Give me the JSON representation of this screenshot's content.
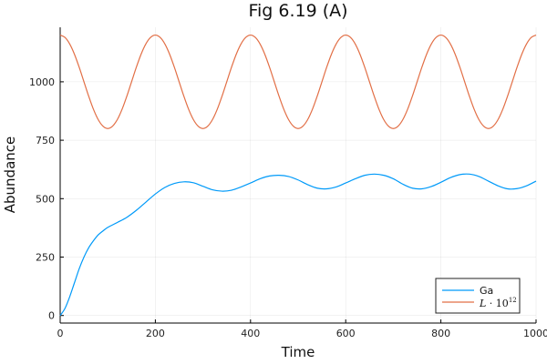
{
  "chart_data": {
    "type": "line",
    "title": "Fig 6.19 (A)",
    "xlabel": "Time",
    "ylabel": "Abundance",
    "xlim": [
      0,
      1000
    ],
    "ylim": [
      -40,
      1240
    ],
    "xticks": [
      0,
      200,
      400,
      600,
      800,
      1000
    ],
    "yticks": [
      0,
      250,
      500,
      750,
      1000
    ],
    "grid": true,
    "legend_position": "bottom-right",
    "series": [
      {
        "name": "Ga",
        "color": "#009af9",
        "x": [
          0,
          10,
          20,
          30,
          40,
          50,
          60,
          70,
          80,
          90,
          100,
          120,
          140,
          160,
          180,
          200,
          220,
          240,
          260,
          280,
          300,
          320,
          340,
          360,
          380,
          400,
          420,
          440,
          460,
          480,
          500,
          520,
          540,
          560,
          580,
          600,
          620,
          640,
          660,
          680,
          700,
          720,
          740,
          760,
          780,
          800,
          820,
          840,
          860,
          880,
          900,
          920,
          940,
          960,
          980,
          1000
        ],
        "y": [
          0,
          30,
          80,
          140,
          200,
          250,
          290,
          320,
          345,
          362,
          377,
          398,
          420,
          450,
          485,
          520,
          548,
          565,
          572,
          568,
          553,
          538,
          532,
          536,
          550,
          567,
          585,
          597,
          600,
          595,
          580,
          560,
          545,
          542,
          550,
          567,
          585,
          600,
          605,
          600,
          585,
          562,
          545,
          542,
          552,
          570,
          590,
          603,
          605,
          595,
          575,
          555,
          542,
          543,
          555,
          575
        ]
      },
      {
        "name": "L · 10^12",
        "name_base": "L",
        "name_mid": " · 10",
        "name_exp": "12",
        "color": "#e26f46",
        "x_step": 10,
        "y": [
          1200,
          1190,
          1162,
          1118,
          1062,
          1000,
          938,
          882,
          838,
          810,
          800,
          810,
          838,
          882,
          938,
          1000,
          1062,
          1118,
          1162,
          1190,
          1200,
          1190,
          1162,
          1118,
          1062,
          1000,
          938,
          882,
          838,
          810,
          800,
          810,
          838,
          882,
          938,
          1000,
          1062,
          1118,
          1162,
          1190,
          1200,
          1190,
          1162,
          1118,
          1062,
          1000,
          938,
          882,
          838,
          810,
          800,
          810,
          838,
          882,
          938,
          1000,
          1062,
          1118,
          1162,
          1190,
          1200,
          1190,
          1162,
          1118,
          1062,
          1000,
          938,
          882,
          838,
          810,
          800,
          810,
          838,
          882,
          938,
          1000,
          1062,
          1118,
          1162,
          1190,
          1200,
          1190,
          1162,
          1118,
          1062,
          1000,
          938,
          882,
          838,
          810,
          800,
          810,
          838,
          882,
          938,
          1000,
          1062,
          1118,
          1162,
          1190,
          1200
        ]
      }
    ]
  }
}
